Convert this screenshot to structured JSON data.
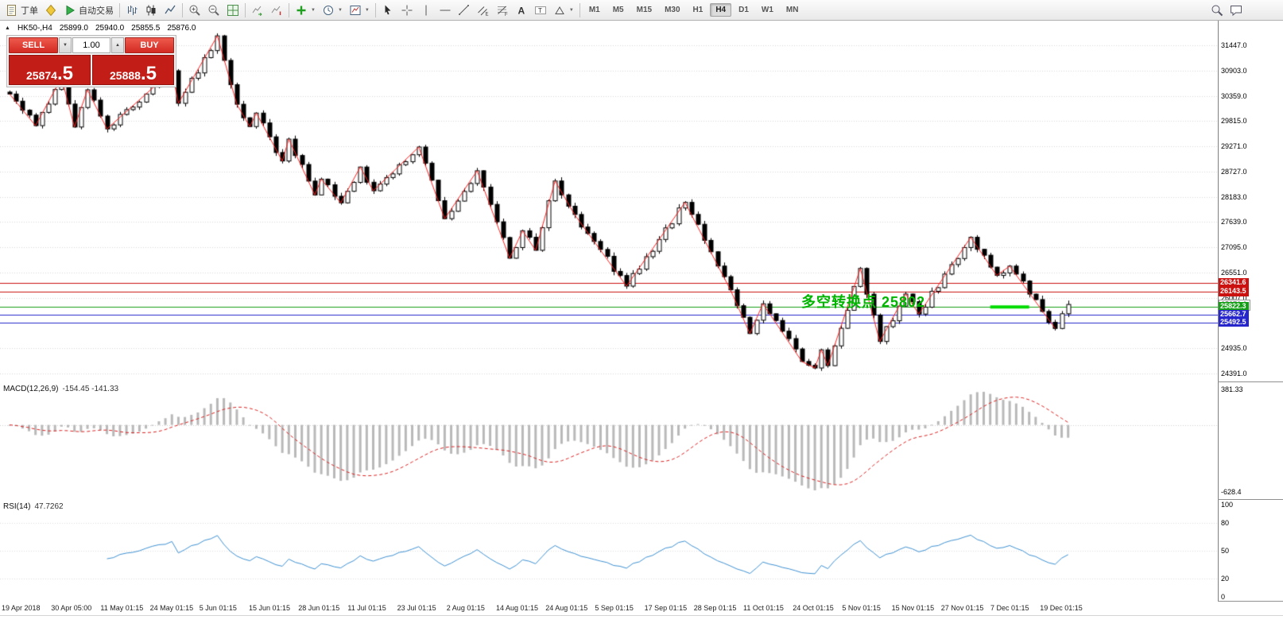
{
  "icons": {
    "caret_down": "▼",
    "volume_up": "▲",
    "volume_down": "▼",
    "collapse": "▲"
  },
  "toolbar": {
    "groups": [
      {
        "buttons": [
          {
            "name": "new-order-button",
            "icon": "order",
            "label": "丁单"
          },
          {
            "name": "favorites-button",
            "icon": "diamond"
          },
          {
            "name": "autotrading-button",
            "icon": "play",
            "label": "自动交易"
          }
        ]
      },
      {
        "buttons": [
          {
            "name": "bar-chart-button",
            "icon": "bars"
          },
          {
            "name": "candlestick-chart-button",
            "icon": "candles"
          },
          {
            "name": "line-chart-button",
            "icon": "line"
          }
        ]
      },
      {
        "buttons": [
          {
            "name": "zoom-in-button",
            "icon": "zoom-in"
          },
          {
            "name": "zoom-out-button",
            "icon": "zoom-out"
          },
          {
            "name": "tile-windows-button",
            "icon": "tile"
          }
        ]
      },
      {
        "buttons": [
          {
            "name": "auto-scroll-button",
            "icon": "auto-scroll"
          },
          {
            "name": "chart-shift-button",
            "icon": "chart-shift"
          }
        ]
      },
      {
        "buttons": [
          {
            "name": "new-chart-button",
            "icon": "new-chart",
            "caret": true
          },
          {
            "name": "periods-button",
            "icon": "clock",
            "caret": true
          },
          {
            "name": "templates-button",
            "icon": "template",
            "caret": true
          }
        ]
      },
      {
        "buttons": [
          {
            "name": "cursor-button",
            "icon": "cursor"
          },
          {
            "name": "crosshair-button",
            "icon": "crosshair"
          },
          {
            "name": "vertical-line-button",
            "icon": "vline"
          },
          {
            "name": "horizontal-line-button",
            "icon": "hline"
          },
          {
            "name": "trendline-button",
            "icon": "trendline"
          },
          {
            "name": "equidistant-channel-button",
            "icon": "channel"
          },
          {
            "name": "fibonacci-button",
            "icon": "fibonacci"
          },
          {
            "name": "text-button",
            "icon": "text"
          },
          {
            "name": "text-label-button",
            "icon": "label"
          },
          {
            "name": "shapes-button",
            "icon": "shapes",
            "caret": true
          }
        ]
      }
    ],
    "timeframes": {
      "items": [
        "M1",
        "M5",
        "M15",
        "M30",
        "H1",
        "H4",
        "D1",
        "W1",
        "MN"
      ],
      "active": "H4"
    },
    "right_buttons": [
      {
        "name": "search-button",
        "icon": "search"
      },
      {
        "name": "chat-button",
        "icon": "chat"
      }
    ]
  },
  "main_chart": {
    "symbol": "HK50-,H4",
    "ohlc": {
      "open": "25899.0",
      "high": "25940.0",
      "low": "25855.5",
      "close": "25876.0"
    },
    "y_axis": [
      "31447.0",
      "30903.0",
      "30359.0",
      "29815.0",
      "29271.0",
      "28727.0",
      "28183.0",
      "27639.0",
      "27095.0",
      "26551.0",
      "26007.0",
      "25463.0",
      "24935.0",
      "24391.0"
    ],
    "levels": [
      {
        "price": 26341.6,
        "label": "26341.6",
        "color": "#cc1111",
        "type": "resistance"
      },
      {
        "price": 26143.5,
        "label": "26143.5",
        "color": "#cc1111",
        "type": "resistance"
      },
      {
        "price": 25876.0,
        "label": "25876.0",
        "color": "#ffffff",
        "type": "current"
      },
      {
        "price": 25822.3,
        "label": "25822.3",
        "color": "#14a014",
        "type": "pivot"
      },
      {
        "price": 25662.7,
        "label": "25662.7",
        "color": "#2626cc",
        "type": "support"
      },
      {
        "price": 25492.5,
        "label": "25492.5",
        "color": "#2626cc",
        "type": "support"
      }
    ],
    "annotation": {
      "text": "多空转换点 25802",
      "color": "#00b400"
    },
    "green_segment": {
      "from": 151,
      "to": 157,
      "price": 25820,
      "color": "#00dc00"
    },
    "zigzag_color": "#ff2222",
    "grid_color": "#d9d9d9"
  },
  "trade_panel": {
    "sell_label": "SELL",
    "buy_label": "BUY",
    "volume": "1.00",
    "sell_price_main": "25874",
    "sell_price_big": ".5",
    "buy_price_main": "25888",
    "buy_price_big": ".5"
  },
  "macd": {
    "name": "MACD(12,26,9)",
    "values": "-154.45 -141.33",
    "axis": [
      "381.33",
      "-628.4"
    ],
    "histogram_color": "#b9b9b9",
    "signal_color": "#dd2222"
  },
  "rsi": {
    "name": "RSI(14)",
    "value": "47.7262",
    "axis": [
      100,
      80,
      50,
      20,
      0
    ],
    "line_color": "#3f92d2"
  },
  "time_axis": [
    "19 Apr 2018",
    "30 Apr 05:00",
    "11 May 01:15",
    "24 May 01:15",
    "5 Jun 01:15",
    "15 Jun 01:15",
    "28 Jun 01:15",
    "11 Jul 01:15",
    "23 Jul 01:15",
    "2 Aug 01:15",
    "14 Aug 01:15",
    "24 Aug 01:15",
    "5 Sep 01:15",
    "17 Sep 01:15",
    "28 Sep 01:15",
    "11 Oct 01:15",
    "24 Oct 01:15",
    "5 Nov 01:15",
    "15 Nov 01:15",
    "27 Nov 01:15",
    "7 Dec 01:15",
    "19 Dec 01:15"
  ],
  "chart_data": {
    "type": "candlestick",
    "symbol": "HK50-",
    "timeframe": "H4",
    "bars": 164,
    "price_range": [
      24391,
      31447
    ],
    "last_close": 25876.0,
    "levels": [
      26341.6,
      26143.5,
      25822.3,
      25662.7,
      25492.5
    ],
    "zigzag": [
      [
        0,
        30400
      ],
      [
        4,
        29720
      ],
      [
        8,
        30750
      ],
      [
        10,
        29690
      ],
      [
        12,
        30490
      ],
      [
        15,
        29650
      ],
      [
        25,
        30900
      ],
      [
        26,
        30200
      ],
      [
        32,
        31650
      ],
      [
        35,
        30180
      ],
      [
        37,
        29700
      ],
      [
        38,
        29990
      ],
      [
        42,
        28960
      ],
      [
        43,
        29430
      ],
      [
        47,
        28230
      ],
      [
        48,
        28570
      ],
      [
        51,
        28060
      ],
      [
        54,
        28830
      ],
      [
        56,
        28320
      ],
      [
        63,
        29260
      ],
      [
        67,
        27720
      ],
      [
        72,
        28750
      ],
      [
        77,
        26870
      ],
      [
        79,
        27460
      ],
      [
        81,
        27040
      ],
      [
        84,
        28530
      ],
      [
        87,
        27810
      ],
      [
        95,
        26270
      ],
      [
        104,
        28070
      ],
      [
        111,
        26190
      ],
      [
        114,
        25250
      ],
      [
        116,
        25890
      ],
      [
        122,
        24650
      ],
      [
        124,
        24510
      ],
      [
        125,
        24900
      ],
      [
        126,
        24560
      ],
      [
        131,
        26650
      ],
      [
        134,
        25080
      ],
      [
        138,
        26100
      ],
      [
        140,
        25670
      ],
      [
        148,
        27320
      ],
      [
        152,
        26500
      ],
      [
        154,
        26700
      ],
      [
        161,
        25360
      ],
      [
        163,
        25876
      ]
    ]
  }
}
